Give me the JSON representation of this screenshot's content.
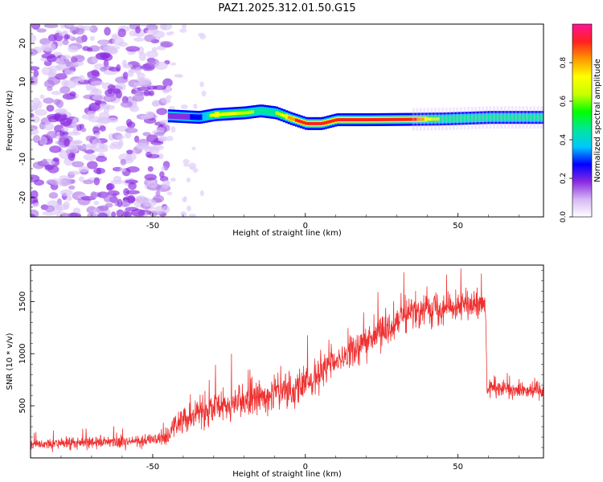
{
  "title": "PAZ1.2025.312.01.50.G15",
  "chart_data": [
    {
      "type": "heatmap",
      "xlabel": "Height of straight line (km)",
      "ylabel": "Frequency (Hz)",
      "xlim": [
        -90,
        78
      ],
      "ylim": [
        -25,
        25
      ],
      "xticks": [
        -50,
        0,
        50
      ],
      "yticks": [
        -20,
        -10,
        0,
        10,
        20
      ],
      "colorbar": {
        "label": "Normalized spectral amplitude",
        "range": [
          0.0,
          1.0
        ],
        "ticks": [
          0.0,
          0.2,
          0.4,
          0.6,
          0.8
        ],
        "tick_labels": [
          "0.0",
          "0.2",
          "0.4",
          "0.6",
          "0.8"
        ],
        "colors": [
          "#ffffff",
          "#d6b8f5",
          "#8a2be2",
          "#0000ff",
          "#00c8ff",
          "#00e69a",
          "#00ff00",
          "#c8ff00",
          "#ffff00",
          "#ff9900",
          "#ff2020",
          "#ff1493"
        ]
      },
      "noise_region": {
        "x_range": [
          -90,
          -45
        ],
        "freq_range": [
          -25,
          25
        ],
        "amplitude": 0.1
      },
      "signal_track": [
        {
          "x": -45,
          "f": 1.2,
          "a": 0.25
        },
        {
          "x": -35,
          "f": 0.8,
          "a": 0.3
        },
        {
          "x": -30,
          "f": 1.5,
          "a": 0.75
        },
        {
          "x": -20,
          "f": 2.0,
          "a": 0.65
        },
        {
          "x": -15,
          "f": 2.5,
          "a": 0.55
        },
        {
          "x": -10,
          "f": 2.0,
          "a": 0.6
        },
        {
          "x": -5,
          "f": 0.5,
          "a": 0.85
        },
        {
          "x": 0,
          "f": -0.8,
          "a": 0.9
        },
        {
          "x": 5,
          "f": -0.8,
          "a": 0.9
        },
        {
          "x": 10,
          "f": 0.2,
          "a": 0.95
        },
        {
          "x": 20,
          "f": 0.2,
          "a": 0.95
        },
        {
          "x": 35,
          "f": 0.3,
          "a": 0.9
        },
        {
          "x": 45,
          "f": 0.4,
          "a": 0.55
        },
        {
          "x": 60,
          "f": 0.8,
          "a": 0.6
        },
        {
          "x": 78,
          "f": 0.8,
          "a": 0.55
        }
      ]
    },
    {
      "type": "line",
      "xlabel": "Height of straight line (km)",
      "ylabel": "SNR (10 * v/v)",
      "xlim": [
        -90,
        78
      ],
      "ylim": [
        0,
        1850
      ],
      "xticks": [
        -50,
        0,
        50
      ],
      "yticks": [
        500,
        1000,
        1500
      ],
      "series": [
        {
          "name": "SNR",
          "color": "#ef3030",
          "trend": [
            {
              "x": -90,
              "y": 130
            },
            {
              "x": -55,
              "y": 160
            },
            {
              "x": -45,
              "y": 190
            },
            {
              "x": -43,
              "y": 300
            },
            {
              "x": -40,
              "y": 380
            },
            {
              "x": -30,
              "y": 480
            },
            {
              "x": -20,
              "y": 540
            },
            {
              "x": -10,
              "y": 620
            },
            {
              "x": 0,
              "y": 700
            },
            {
              "x": 10,
              "y": 920
            },
            {
              "x": 20,
              "y": 1120
            },
            {
              "x": 30,
              "y": 1330
            },
            {
              "x": 40,
              "y": 1440
            },
            {
              "x": 50,
              "y": 1470
            },
            {
              "x": 59,
              "y": 1450
            },
            {
              "x": 59.5,
              "y": 660
            },
            {
              "x": 70,
              "y": 660
            },
            {
              "x": 78,
              "y": 650
            }
          ],
          "noise_amplitude": [
            {
              "x": -90,
              "a": 70
            },
            {
              "x": -45,
              "a": 80
            },
            {
              "x": -40,
              "a": 180
            },
            {
              "x": 0,
              "a": 230
            },
            {
              "x": 50,
              "a": 180
            },
            {
              "x": 59,
              "a": 170
            },
            {
              "x": 60,
              "a": 110
            },
            {
              "x": 78,
              "a": 110
            }
          ]
        }
      ]
    }
  ]
}
